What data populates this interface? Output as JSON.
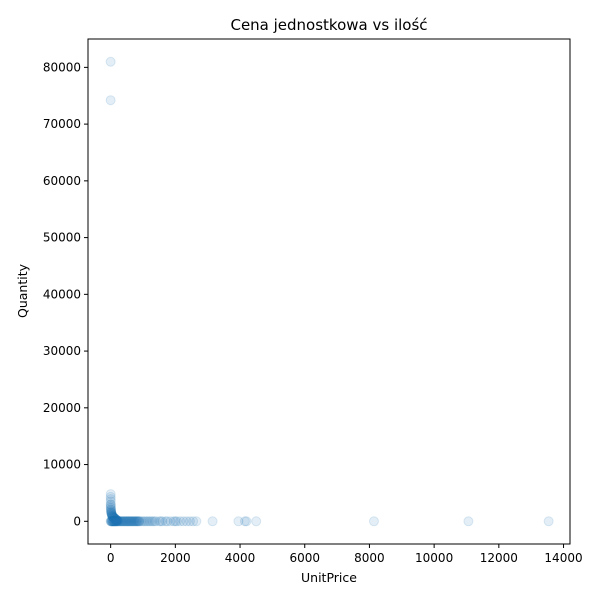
{
  "chart_data": {
    "type": "scatter",
    "title": "Cena jednostkowa vs ilość",
    "xlabel": "UnitPrice",
    "ylabel": "Quantity",
    "xlim": [
      -700,
      14200
    ],
    "ylim": [
      -4000,
      85000
    ],
    "xticks": [
      0,
      2000,
      4000,
      6000,
      8000,
      10000,
      12000,
      14000
    ],
    "xtick_labels": [
      "0",
      "2000",
      "4000",
      "6000",
      "8000",
      "10000",
      "12000",
      "14000"
    ],
    "yticks": [
      0,
      10000,
      20000,
      30000,
      40000,
      50000,
      60000,
      70000,
      80000
    ],
    "ytick_labels": [
      "0",
      "10000",
      "20000",
      "30000",
      "40000",
      "50000",
      "60000",
      "70000",
      "80000"
    ],
    "grid": false,
    "marker_color": "#1f77b4",
    "marker_alpha": 0.12,
    "points": [
      [
        0,
        80995
      ],
      [
        0,
        74215
      ],
      [
        2,
        4800
      ],
      [
        2,
        4300
      ],
      [
        3,
        3906
      ],
      [
        3,
        3500
      ],
      [
        3,
        3000
      ],
      [
        5,
        2880
      ],
      [
        4,
        2600
      ],
      [
        6,
        2400
      ],
      [
        8,
        2160
      ],
      [
        10,
        2000
      ],
      [
        12,
        1900
      ],
      [
        15,
        1700
      ],
      [
        18,
        1600
      ],
      [
        20,
        1500
      ],
      [
        25,
        1400
      ],
      [
        30,
        1300
      ],
      [
        35,
        1200
      ],
      [
        40,
        1100
      ],
      [
        45,
        1000
      ],
      [
        50,
        950
      ],
      [
        55,
        900
      ],
      [
        60,
        850
      ],
      [
        70,
        800
      ],
      [
        80,
        750
      ],
      [
        90,
        700
      ],
      [
        100,
        650
      ],
      [
        110,
        600
      ],
      [
        120,
        550
      ],
      [
        130,
        500
      ],
      [
        140,
        450
      ],
      [
        150,
        400
      ],
      [
        160,
        350
      ],
      [
        170,
        300
      ],
      [
        180,
        250
      ],
      [
        190,
        200
      ],
      [
        200,
        150
      ],
      [
        210,
        120
      ],
      [
        220,
        100
      ],
      [
        0,
        0
      ],
      [
        10,
        0
      ],
      [
        20,
        0
      ],
      [
        30,
        0
      ],
      [
        40,
        0
      ],
      [
        50,
        0
      ],
      [
        60,
        0
      ],
      [
        70,
        0
      ],
      [
        80,
        0
      ],
      [
        90,
        0
      ],
      [
        100,
        0
      ],
      [
        110,
        0
      ],
      [
        120,
        0
      ],
      [
        130,
        0
      ],
      [
        140,
        0
      ],
      [
        150,
        0
      ],
      [
        160,
        0
      ],
      [
        170,
        0
      ],
      [
        180,
        0
      ],
      [
        190,
        0
      ],
      [
        200,
        0
      ],
      [
        220,
        0
      ],
      [
        240,
        0
      ],
      [
        260,
        0
      ],
      [
        280,
        0
      ],
      [
        300,
        0
      ],
      [
        320,
        0
      ],
      [
        340,
        0
      ],
      [
        360,
        0
      ],
      [
        380,
        0
      ],
      [
        400,
        0
      ],
      [
        420,
        0
      ],
      [
        440,
        0
      ],
      [
        460,
        0
      ],
      [
        480,
        0
      ],
      [
        500,
        0
      ],
      [
        520,
        0
      ],
      [
        540,
        0
      ],
      [
        560,
        0
      ],
      [
        580,
        0
      ],
      [
        600,
        0
      ],
      [
        620,
        0
      ],
      [
        640,
        0
      ],
      [
        660,
        0
      ],
      [
        680,
        0
      ],
      [
        700,
        0
      ],
      [
        720,
        0
      ],
      [
        740,
        0
      ],
      [
        760,
        0
      ],
      [
        780,
        0
      ],
      [
        800,
        0
      ],
      [
        820,
        0
      ],
      [
        840,
        0
      ],
      [
        860,
        0
      ],
      [
        880,
        0
      ],
      [
        900,
        0
      ],
      [
        950,
        0
      ],
      [
        1000,
        0
      ],
      [
        1050,
        0
      ],
      [
        1100,
        0
      ],
      [
        1150,
        0
      ],
      [
        1200,
        0
      ],
      [
        1250,
        0
      ],
      [
        1300,
        0
      ],
      [
        1350,
        0
      ],
      [
        1400,
        0
      ],
      [
        1500,
        0
      ],
      [
        1550,
        0
      ],
      [
        1600,
        0
      ],
      [
        1700,
        0
      ],
      [
        1750,
        0
      ],
      [
        1850,
        0
      ],
      [
        1950,
        0
      ],
      [
        2000,
        0
      ],
      [
        2050,
        0
      ],
      [
        2150,
        0
      ],
      [
        2250,
        0
      ],
      [
        2350,
        0
      ],
      [
        2450,
        0
      ],
      [
        2550,
        0
      ],
      [
        2650,
        0
      ],
      [
        3150,
        0
      ],
      [
        3950,
        0
      ],
      [
        4150,
        0
      ],
      [
        4200,
        0
      ],
      [
        4500,
        0
      ],
      [
        8140,
        0
      ],
      [
        11060,
        0
      ],
      [
        13540,
        0
      ]
    ]
  }
}
